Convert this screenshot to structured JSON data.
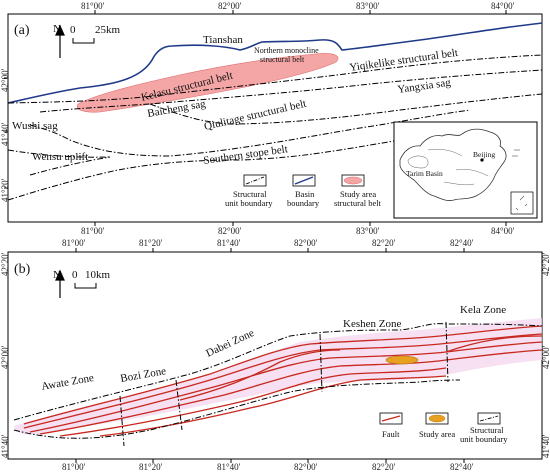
{
  "panel_a": {
    "tag": "(a)",
    "scale": {
      "north": "N",
      "zero": "0",
      "distance": "25km"
    },
    "top_ticks": [
      "81°00'",
      "82°00'",
      "83°00'",
      "84°00'"
    ],
    "bottom_ticks": [
      "81°00'",
      "82°00'",
      "83°00'",
      "84°00'"
    ],
    "left_ticks": [
      "42°00'",
      "41°40'",
      "41°20'"
    ],
    "labels": {
      "tianshan": "Tianshan",
      "northern_monocline_1": "Northern monocline",
      "northern_monocline_2": "structural belt",
      "yiqikelike": "Yiqikelike structural belt",
      "kelasu": "Kelasu structural belt",
      "yangxia": "Yangxia sag",
      "wushi": "Wushi sag",
      "baicheng": "Baicheng sag",
      "qiulitage": "Qiulitage structural belt",
      "southern": "Southern stope belt",
      "wensu": "Wensu uplift"
    },
    "inset": {
      "beijing": "Beijing",
      "tarim": "Tarim Basin"
    },
    "legend": [
      {
        "line1": "Structural",
        "line2": "unit boundary"
      },
      {
        "line1": "Basin",
        "line2": "boundary"
      },
      {
        "line1": "Study area",
        "line2": "structural belt"
      }
    ]
  },
  "panel_b": {
    "tag": "(b)",
    "scale": {
      "north": "N",
      "zero": "0",
      "distance": "10km"
    },
    "top_ticks": [
      "81°00'",
      "81°20'",
      "81°40'",
      "82°00'",
      "82°20'",
      "82°40'"
    ],
    "bottom_ticks": [
      "81°00'",
      "81°20'",
      "81°40'",
      "82°00'",
      "82°20'",
      "82°40'"
    ],
    "left_ticks": [
      "42°20'",
      "42°00'",
      "41°40'"
    ],
    "right_ticks": [
      "42°20'",
      "42°00'",
      "41°40'"
    ],
    "zones": {
      "awate": "Awate Zone",
      "bozi": "Bozi Zone",
      "dabei": "Dabei Zone",
      "keshen": "Keshen Zone",
      "kela": "Kela Zone"
    },
    "legend": [
      {
        "line1": "Fault",
        "line2": ""
      },
      {
        "line1": "Study area",
        "line2": ""
      },
      {
        "line1": "Structural",
        "line2": "unit boundary"
      }
    ]
  },
  "colors": {
    "basin_boundary": "#1f3a8a",
    "study_area": "#f4a6a6",
    "fault": "#c8281e",
    "study_area_b": "#e8a020",
    "halo": "#f3d6ee"
  }
}
